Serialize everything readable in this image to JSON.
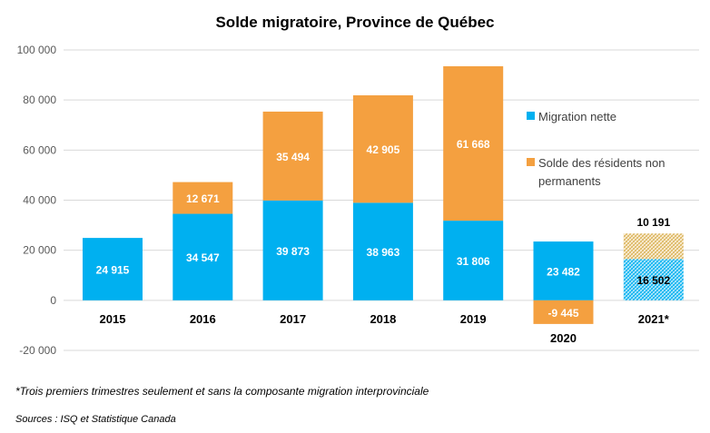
{
  "chart_data": {
    "type": "bar",
    "stacked": true,
    "title": "Solde migratoire, Province de Québec",
    "categories": [
      "2015",
      "2016",
      "2017",
      "2018",
      "2019",
      "2020",
      "2021*"
    ],
    "series": [
      {
        "name": "Migration nette",
        "color": "#00B0F0",
        "values": [
          24915,
          34547,
          39873,
          38963,
          31806,
          23482,
          16502
        ],
        "labels": [
          "24 915",
          "34 547",
          "39 873",
          "38 963",
          "31 806",
          "23 482",
          "16 502"
        ]
      },
      {
        "name": "Solde des résidents non permanents",
        "color": "#F4A040",
        "values": [
          0,
          12671,
          35494,
          42905,
          61668,
          -9445,
          10191
        ],
        "labels": [
          "",
          "12 671",
          "35 494",
          "42 905",
          "61 668",
          "-9 445",
          "10 191"
        ]
      }
    ],
    "hatched_categories": [
      "2021*"
    ],
    "ylim": [
      -20000,
      100000
    ],
    "yticks": [
      100000,
      80000,
      60000,
      40000,
      20000,
      0,
      -20000
    ],
    "ytick_labels": [
      "100 000",
      "80 000",
      "60 000",
      "40 000",
      "20 000",
      "0",
      "-20 000"
    ],
    "legend": {
      "labels": [
        "Migration nette",
        "Solde des résidents non",
        "permanents"
      ],
      "position": "right"
    },
    "xlabel": "",
    "ylabel": ""
  },
  "footnote": "*Trois premiers trimestres seulement et sans la composante migration interprovinciale",
  "source": "Sources : ISQ et Statistique Canada"
}
